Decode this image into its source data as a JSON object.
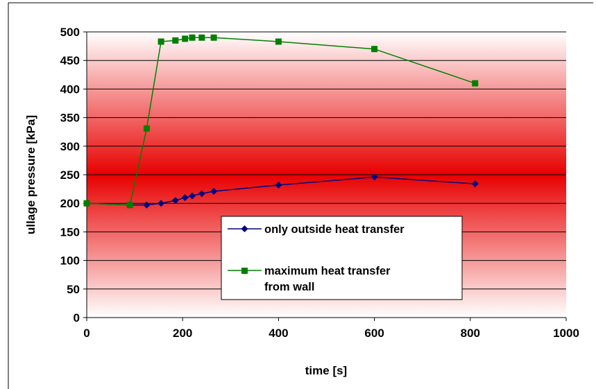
{
  "chart_data": {
    "type": "line",
    "title": "",
    "xlabel": "time [s]",
    "ylabel": "ullage pressure [kPa]",
    "xlim": [
      0,
      1000
    ],
    "ylim": [
      0,
      500
    ],
    "xticks": [
      0,
      200,
      400,
      600,
      800,
      1000
    ],
    "yticks": [
      0,
      50,
      100,
      150,
      200,
      250,
      300,
      350,
      400,
      450,
      500
    ],
    "grid": "horizontal",
    "legend_position": "bottom-center",
    "series": [
      {
        "name": "only outside heat transfer",
        "color": "#000080",
        "marker": "diamond",
        "x": [
          0,
          90,
          125,
          155,
          185,
          205,
          220,
          240,
          265,
          400,
          600,
          810
        ],
        "y": [
          200,
          197,
          197,
          200,
          205,
          210,
          213,
          217,
          221,
          232,
          246,
          234
        ]
      },
      {
        "name": "maximum heat transfer from wall",
        "legend_lines": [
          "maximum heat transfer",
          "from wall"
        ],
        "color": "#008000",
        "marker": "square",
        "x": [
          0,
          90,
          125,
          155,
          185,
          205,
          220,
          240,
          265,
          400,
          600,
          810
        ],
        "y": [
          200,
          197,
          331,
          483,
          485,
          488,
          490,
          490,
          490,
          483,
          470,
          410
        ]
      }
    ]
  }
}
